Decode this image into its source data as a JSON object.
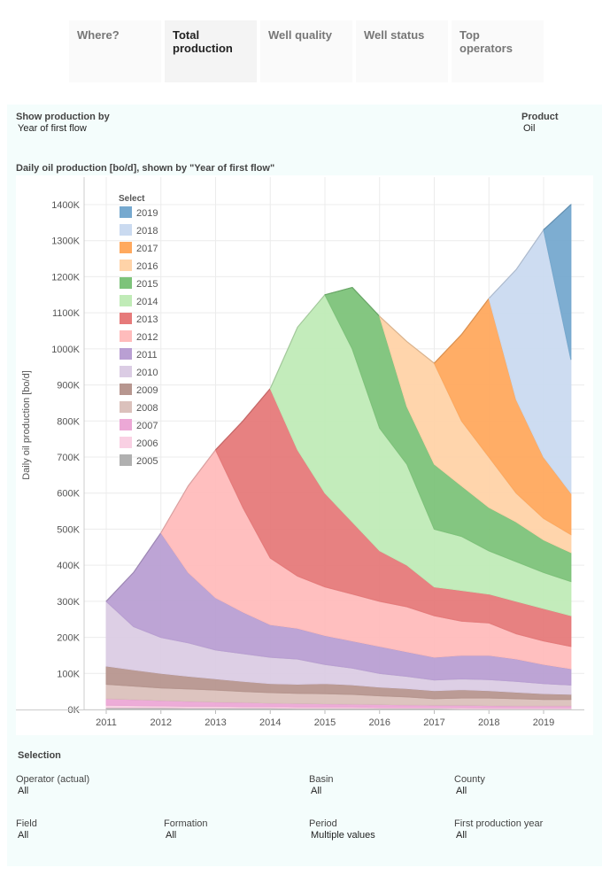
{
  "tabs": [
    {
      "label": "Where?",
      "active": false
    },
    {
      "label": "Total production",
      "active": true
    },
    {
      "label": "Well quality",
      "active": false
    },
    {
      "label": "Well status",
      "active": false
    },
    {
      "label": "Top operators",
      "active": false
    }
  ],
  "controls": {
    "show_by_label": "Show production by",
    "show_by_value": "Year of first flow",
    "product_label": "Product",
    "product_value": "Oil"
  },
  "chart_title": "Daily oil production [bo/d], shown by \"Year of first flow\"",
  "selection": {
    "title": "Selection",
    "filters": [
      {
        "label": "Operator (actual)",
        "value": "All"
      },
      {
        "label": "Basin",
        "value": "All"
      },
      {
        "label": "County",
        "value": "All"
      },
      {
        "label": "Field",
        "value": "All"
      },
      {
        "label": "Formation",
        "value": "All"
      },
      {
        "label": "Period",
        "value": "Multiple values"
      },
      {
        "label": "First production year",
        "value": "All"
      }
    ]
  },
  "chart_data": {
    "type": "area",
    "stacked": true,
    "title": "Daily oil production [bo/d], shown by \"Year of first flow\"",
    "xlabel": "",
    "ylabel": "Daily oil production [bo/d]",
    "ylim": [
      0,
      1400
    ],
    "yunit": "K",
    "yticks": [
      "0K",
      "100K",
      "200K",
      "300K",
      "400K",
      "500K",
      "600K",
      "700K",
      "800K",
      "900K",
      "1000K",
      "1100K",
      "1200K",
      "1300K",
      "1400K"
    ],
    "xticks": [
      "2011",
      "2012",
      "2013",
      "2014",
      "2015",
      "2016",
      "2017",
      "2018",
      "2019"
    ],
    "grid": true,
    "legend": {
      "title": "Select",
      "placement": "top-left"
    },
    "x": [
      "2011-01",
      "2011-07",
      "2012-01",
      "2012-07",
      "2013-01",
      "2013-07",
      "2014-01",
      "2014-07",
      "2015-01",
      "2015-07",
      "2016-01",
      "2016-07",
      "2017-01",
      "2017-07",
      "2018-01",
      "2018-07",
      "2019-01",
      "2019-07"
    ],
    "series": [
      {
        "name": "2005",
        "color": "#b0b0b0",
        "values": [
          5,
          5,
          5,
          4,
          4,
          4,
          4,
          3,
          3,
          3,
          3,
          3,
          3,
          2,
          2,
          2,
          2,
          2
        ]
      },
      {
        "name": "2006",
        "color": "#f9d0e3",
        "values": [
          7,
          6,
          5,
          5,
          5,
          4,
          4,
          4,
          4,
          4,
          3,
          3,
          3,
          4,
          3,
          3,
          3,
          3
        ]
      },
      {
        "name": "2007",
        "color": "#eca8d6",
        "values": [
          18,
          17,
          15,
          14,
          12,
          12,
          10,
          10,
          9,
          8,
          8,
          7,
          6,
          6,
          6,
          5,
          5,
          5
        ]
      },
      {
        "name": "2008",
        "color": "#dbc1bc",
        "values": [
          40,
          37,
          35,
          34,
          33,
          30,
          29,
          28,
          28,
          27,
          24,
          22,
          18,
          20,
          21,
          20,
          18,
          18
        ]
      },
      {
        "name": "2009",
        "color": "#b7968f",
        "values": [
          50,
          45,
          40,
          35,
          31,
          28,
          25,
          25,
          28,
          26,
          24,
          23,
          22,
          23,
          20,
          18,
          16,
          14
        ]
      },
      {
        "name": "2010",
        "color": "#dbcce4",
        "values": [
          180,
          120,
          100,
          93,
          80,
          77,
          73,
          70,
          53,
          47,
          38,
          34,
          30,
          30,
          31,
          30,
          28,
          26
        ]
      },
      {
        "name": "2011",
        "color": "#b99fd3",
        "values": [
          0,
          150,
          290,
          195,
          145,
          115,
          90,
          85,
          80,
          75,
          75,
          68,
          63,
          65,
          67,
          62,
          53,
          45
        ]
      },
      {
        "name": "2012",
        "color": "#ffbcbc",
        "values": [
          0,
          0,
          0,
          240,
          410,
          290,
          185,
          145,
          135,
          130,
          125,
          125,
          115,
          95,
          90,
          70,
          65,
          62
        ]
      },
      {
        "name": "2013",
        "color": "#e67a7a",
        "values": [
          0,
          0,
          0,
          0,
          0,
          240,
          470,
          350,
          260,
          200,
          140,
          115,
          80,
          85,
          80,
          90,
          90,
          85
        ]
      },
      {
        "name": "2014",
        "color": "#c0ebb7",
        "values": [
          0,
          0,
          0,
          0,
          0,
          0,
          0,
          340,
          550,
          480,
          340,
          280,
          160,
          150,
          120,
          110,
          100,
          95
        ]
      },
      {
        "name": "2015",
        "color": "#7dc37a",
        "values": [
          0,
          0,
          0,
          0,
          0,
          0,
          0,
          0,
          0,
          170,
          310,
          160,
          180,
          140,
          120,
          110,
          90,
          80
        ]
      },
      {
        "name": "2016",
        "color": "#ffd3a8",
        "values": [
          0,
          0,
          0,
          0,
          0,
          0,
          0,
          0,
          0,
          0,
          0,
          180,
          280,
          180,
          140,
          80,
          60,
          50
        ]
      },
      {
        "name": "2017",
        "color": "#ffa95e",
        "values": [
          0,
          0,
          0,
          0,
          0,
          0,
          0,
          0,
          0,
          0,
          0,
          0,
          0,
          240,
          440,
          260,
          170,
          115
        ]
      },
      {
        "name": "2018",
        "color": "#cadaf0",
        "values": [
          0,
          0,
          0,
          0,
          0,
          0,
          0,
          0,
          0,
          0,
          0,
          0,
          0,
          0,
          0,
          360,
          630,
          370
        ]
      },
      {
        "name": "2019",
        "color": "#76a9cf",
        "values": [
          0,
          0,
          0,
          0,
          0,
          0,
          0,
          0,
          0,
          0,
          0,
          0,
          0,
          0,
          0,
          0,
          0,
          430
        ]
      }
    ]
  }
}
